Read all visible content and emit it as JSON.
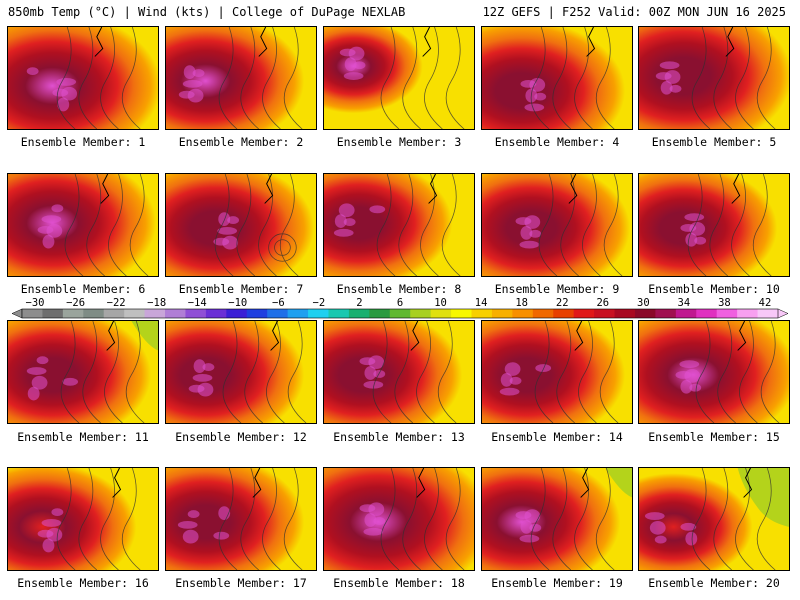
{
  "header": {
    "left": "850mb Temp (°C) | Wind (kts) | College of DuPage NEXLAB",
    "right": "12Z GEFS | F252 Valid: 00Z MON JUN 16 2025"
  },
  "members": [
    {
      "label": "Ensemble Member: 1"
    },
    {
      "label": "Ensemble Member: 2"
    },
    {
      "label": "Ensemble Member: 3"
    },
    {
      "label": "Ensemble Member: 4"
    },
    {
      "label": "Ensemble Member: 5"
    },
    {
      "label": "Ensemble Member: 6"
    },
    {
      "label": "Ensemble Member: 7"
    },
    {
      "label": "Ensemble Member: 8"
    },
    {
      "label": "Ensemble Member: 9"
    },
    {
      "label": "Ensemble Member: 10"
    },
    {
      "label": "Ensemble Member: 11"
    },
    {
      "label": "Ensemble Member: 12"
    },
    {
      "label": "Ensemble Member: 13"
    },
    {
      "label": "Ensemble Member: 14"
    },
    {
      "label": "Ensemble Member: 15"
    },
    {
      "label": "Ensemble Member: 16"
    },
    {
      "label": "Ensemble Member: 17"
    },
    {
      "label": "Ensemble Member: 18"
    },
    {
      "label": "Ensemble Member: 19"
    },
    {
      "label": "Ensemble Member: 20"
    }
  ],
  "colorbar": {
    "ticks": [
      "−30",
      "−26",
      "−22",
      "−18",
      "−14",
      "−10",
      "−6",
      "−2",
      "2",
      "6",
      "10",
      "14",
      "18",
      "22",
      "26",
      "30",
      "34",
      "38",
      "42"
    ],
    "colors": [
      "#8d8d8d",
      "#6e6e6e",
      "#9aa49c",
      "#7f8c85",
      "#a6a6a6",
      "#bfbfbf",
      "#c9a6d9",
      "#b07ed6",
      "#8f4fd6",
      "#6a2fd6",
      "#3a1fd6",
      "#1f3fe0",
      "#1f6fe8",
      "#1fa0f0",
      "#1fd0f0",
      "#19c8b0",
      "#18b070",
      "#2a9a40",
      "#60b830",
      "#a8d020",
      "#e0e010",
      "#f8f800",
      "#f8d000",
      "#f8b000",
      "#f89000",
      "#f06800",
      "#e84000",
      "#e01818",
      "#c81020",
      "#a80820",
      "#8a0828",
      "#a01050",
      "#c01890",
      "#e030c0",
      "#f060e0",
      "#f8a0f0",
      "#f8c8f8"
    ]
  },
  "palette": {
    "yellow": "#f8e000",
    "orange": "#f8a000",
    "dark_orange": "#f07010",
    "red": "#e02020",
    "dark_red": "#b01020",
    "maroon": "#8a1030",
    "magenta": "#c02890",
    "pink": "#e050d0",
    "green": "#a8d020"
  }
}
